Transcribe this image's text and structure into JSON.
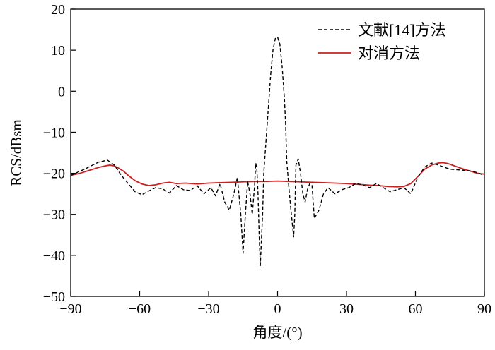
{
  "chart_data": {
    "type": "line",
    "title": "",
    "xlabel": "角度/(°)",
    "ylabel": "RCS/dBsm",
    "xlim": [
      -90,
      90
    ],
    "ylim": [
      -50,
      20
    ],
    "x_ticks": [
      -90,
      -60,
      -30,
      0,
      30,
      60,
      90
    ],
    "y_ticks": [
      -50,
      -40,
      -30,
      -20,
      -10,
      0,
      10,
      20
    ],
    "x_tick_labels": [
      "−90",
      "−60",
      "−30",
      "0",
      "30",
      "60",
      "90"
    ],
    "y_tick_labels": [
      "−50",
      "−40",
      "−30",
      "−20",
      "−10",
      "0",
      "10",
      "20"
    ],
    "grid": false,
    "legend_position": "top-right",
    "series": [
      {
        "name": "文献[14]方法",
        "color": "#000000",
        "style": "dashed",
        "x": [
          -90,
          -84,
          -78,
          -74,
          -71,
          -68,
          -65,
          -62,
          -59,
          -56,
          -53,
          -50,
          -47,
          -44,
          -41,
          -38,
          -35,
          -32,
          -29,
          -27,
          -25,
          -23,
          -21,
          -19,
          -17.5,
          -16,
          -15,
          -14,
          -13,
          -12,
          -11,
          -10,
          -9.5,
          -9,
          -8.5,
          -8,
          -7.5,
          -7,
          -6.5,
          -6,
          -5,
          -4,
          -3,
          -2,
          -1,
          0,
          1,
          2,
          3,
          3.5,
          4,
          5,
          6,
          7,
          7.5,
          8,
          9,
          10,
          11,
          12,
          13,
          14,
          15,
          16,
          18,
          20,
          22,
          25,
          28,
          31,
          34,
          37,
          40,
          43,
          46,
          49,
          52,
          55,
          58,
          61,
          64,
          67,
          70,
          75,
          80,
          85,
          90
        ],
        "y": [
          -20.5,
          -19,
          -17.3,
          -16.8,
          -18,
          -20.5,
          -22.5,
          -24.5,
          -25.2,
          -24.3,
          -23.5,
          -23.8,
          -24.8,
          -23,
          -24,
          -24.2,
          -23,
          -25,
          -23.5,
          -25.5,
          -22.5,
          -27,
          -29,
          -25,
          -21,
          -30,
          -39.5,
          -30,
          -22,
          -25,
          -30,
          -23,
          -17.5,
          -19,
          -25,
          -35,
          -42.5,
          -36,
          -30,
          -20,
          -12,
          -4,
          4,
          10,
          12.8,
          13.2,
          11.5,
          6,
          -2,
          -8,
          -17,
          -24,
          -30,
          -35.5,
          -30,
          -18,
          -16.5,
          -20,
          -25,
          -27,
          -24,
          -22.5,
          -23,
          -31,
          -29,
          -25,
          -23.5,
          -25,
          -24,
          -23.5,
          -22.5,
          -22.8,
          -23.5,
          -22.5,
          -23.5,
          -24.5,
          -24,
          -23.5,
          -25,
          -21,
          -18.5,
          -17.5,
          -18,
          -19,
          -19.2,
          -19.5,
          -20.5
        ]
      },
      {
        "name": "对消方法",
        "color": "#cc2020",
        "style": "solid",
        "x": [
          -90,
          -86,
          -82,
          -78,
          -75,
          -73,
          -71,
          -69,
          -67,
          -65,
          -62,
          -59,
          -56,
          -53,
          -50,
          -47,
          -44,
          -40,
          -35,
          -30,
          -25,
          -20,
          -15,
          -10,
          -5,
          0,
          5,
          10,
          15,
          20,
          25,
          30,
          35,
          40,
          44,
          48,
          52,
          55,
          58,
          61,
          64,
          67,
          70,
          72,
          74,
          77,
          80,
          84,
          87,
          90
        ],
        "y": [
          -20.5,
          -20,
          -19.3,
          -18.6,
          -18.2,
          -18,
          -18.2,
          -18.8,
          -19.5,
          -20.5,
          -21.8,
          -22.6,
          -23,
          -22.8,
          -22.4,
          -22.2,
          -22.5,
          -22.4,
          -22.6,
          -22.4,
          -22.3,
          -22.2,
          -22.1,
          -22.0,
          -22.0,
          -21.9,
          -22.0,
          -22.1,
          -22.2,
          -22.3,
          -22.4,
          -22.5,
          -22.7,
          -22.9,
          -23.0,
          -23.2,
          -23.3,
          -23.2,
          -22.5,
          -20.8,
          -19.0,
          -18.0,
          -17.5,
          -17.4,
          -17.6,
          -18.2,
          -18.8,
          -19.5,
          -20.0,
          -20.2
        ]
      }
    ]
  }
}
